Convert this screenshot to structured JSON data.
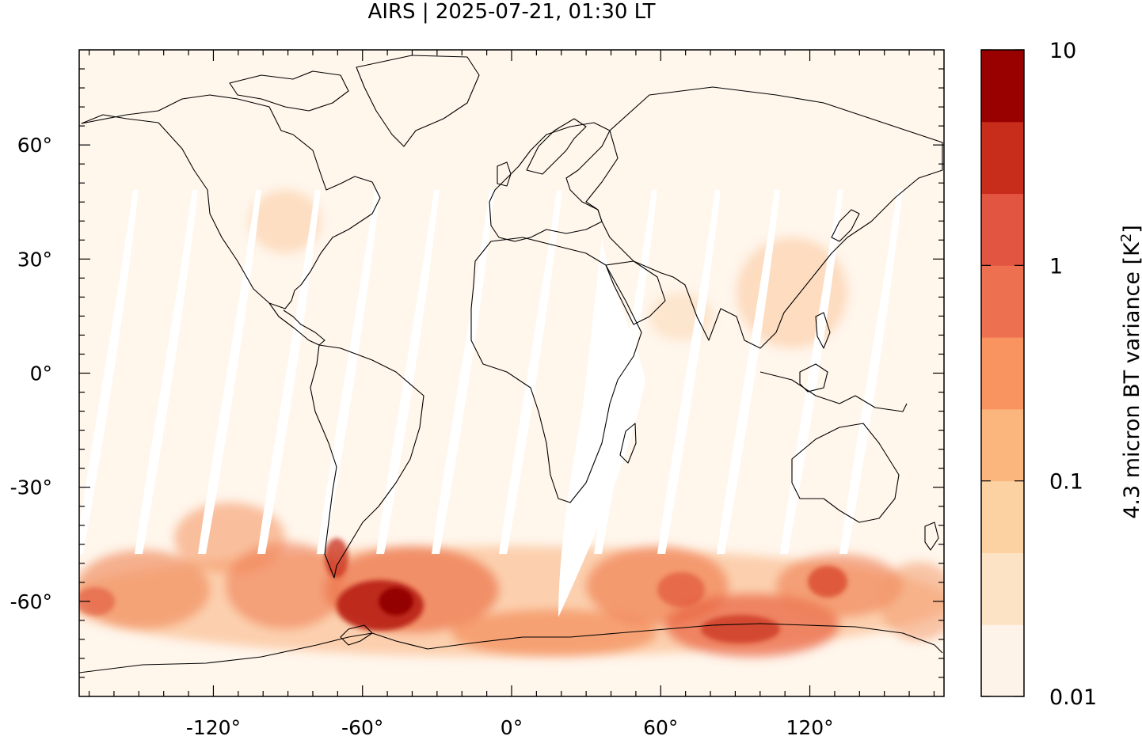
{
  "title": "AIRS | 2025-07-21, 01:30 LT",
  "map": {
    "lon_ticks": [
      "-120°",
      "-60°",
      "0°",
      "60°",
      "120°"
    ],
    "lat_ticks": [
      "60°",
      "30°",
      "0°",
      "-30°",
      "-60°"
    ],
    "lon_tick_values": [
      -120,
      -60,
      0,
      60,
      120
    ],
    "lat_tick_values": [
      60,
      30,
      0,
      -30,
      -60
    ],
    "lon_range": [
      -174,
      174
    ],
    "lat_range": [
      -85,
      85
    ],
    "gap_color": "#ffffff",
    "background_color": "#fff6ec",
    "coastline_color": "#000000"
  },
  "colorbar": {
    "label": "4.3 micron BT variance [K",
    "label_sup": "2",
    "label_close": "]",
    "tick_labels": [
      "10",
      "1",
      "0.1",
      "0.01"
    ],
    "range": [
      0.01,
      10
    ],
    "scale": "log",
    "colors": [
      "#fdf3e8",
      "#fce3c6",
      "#fcd2a2",
      "#fbb67e",
      "#f99460",
      "#ed7150",
      "#e25540",
      "#c82c1b",
      "#990000"
    ]
  }
}
